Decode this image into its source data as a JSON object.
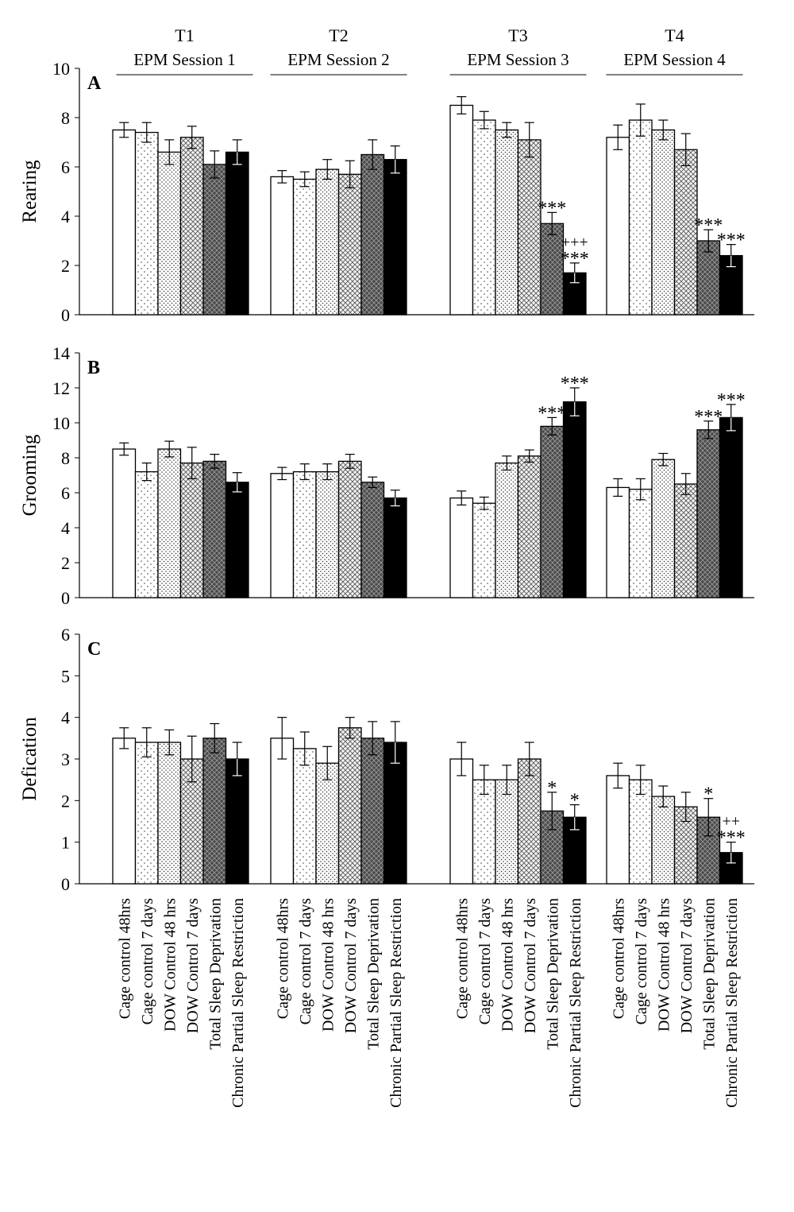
{
  "chart_data": {
    "type": "bar",
    "sessions": [
      {
        "code": "T1",
        "name": "EPM Session 1"
      },
      {
        "code": "T2",
        "name": "EPM Session 2"
      },
      {
        "code": "T3",
        "name": "EPM Session 3"
      },
      {
        "code": "T4",
        "name": "EPM Session 4"
      }
    ],
    "categories": [
      "Cage control 48hrs",
      "Cage control 7 days",
      "DOW  Control 48 hrs",
      "DOW  Control 7 days",
      "Total Sleep Deprivation",
      "Chronic Partial Sleep  Restriction"
    ],
    "series_styles": [
      {
        "fill": "#ffffff",
        "pattern": "none"
      },
      {
        "fill": "#ffffff",
        "pattern": "sparse-dots"
      },
      {
        "fill": "#ffffff",
        "pattern": "dense-dots"
      },
      {
        "fill": "#e6e6e6",
        "pattern": "crosshatch"
      },
      {
        "fill": "#5a5a5a",
        "pattern": "dark-crosshatch"
      },
      {
        "fill": "#000000",
        "pattern": "solid"
      }
    ],
    "panels": [
      {
        "letter": "A",
        "ylabel": "Rearing",
        "ylim": [
          0,
          10
        ],
        "yticks": [
          0,
          2,
          4,
          6,
          8,
          10
        ],
        "groups": [
          {
            "values": [
              7.5,
              7.4,
              6.6,
              7.2,
              6.1,
              6.6
            ],
            "errors": [
              0.3,
              0.4,
              0.5,
              0.45,
              0.55,
              0.5
            ],
            "annotations": [
              "",
              "",
              "",
              "",
              "",
              ""
            ]
          },
          {
            "values": [
              5.6,
              5.5,
              5.9,
              5.7,
              6.5,
              6.3
            ],
            "errors": [
              0.25,
              0.3,
              0.4,
              0.55,
              0.6,
              0.55
            ],
            "annotations": [
              "",
              "",
              "",
              "",
              "",
              ""
            ]
          },
          {
            "values": [
              8.5,
              7.9,
              7.5,
              7.1,
              3.7,
              1.7
            ],
            "errors": [
              0.35,
              0.35,
              0.3,
              0.7,
              0.45,
              0.4
            ],
            "annotations": [
              "",
              "",
              "",
              "",
              "***",
              "+++\n***"
            ]
          },
          {
            "values": [
              7.2,
              7.9,
              7.5,
              6.7,
              3.0,
              2.4
            ],
            "errors": [
              0.5,
              0.65,
              0.4,
              0.65,
              0.45,
              0.45
            ],
            "annotations": [
              "",
              "",
              "",
              "",
              "***",
              "***"
            ]
          }
        ]
      },
      {
        "letter": "B",
        "ylabel": "Grooming",
        "ylim": [
          0,
          14
        ],
        "yticks": [
          0,
          2,
          4,
          6,
          8,
          10,
          12,
          14
        ],
        "groups": [
          {
            "values": [
              8.5,
              7.2,
              8.5,
              7.7,
              7.8,
              6.6
            ],
            "errors": [
              0.35,
              0.5,
              0.45,
              0.9,
              0.4,
              0.55
            ],
            "annotations": [
              "",
              "",
              "",
              "",
              "",
              ""
            ]
          },
          {
            "values": [
              7.1,
              7.2,
              7.2,
              7.8,
              6.6,
              5.7
            ],
            "errors": [
              0.35,
              0.45,
              0.45,
              0.4,
              0.3,
              0.45
            ],
            "annotations": [
              "",
              "",
              "",
              "",
              "",
              ""
            ]
          },
          {
            "values": [
              5.7,
              5.4,
              7.7,
              8.1,
              9.8,
              11.2
            ],
            "errors": [
              0.4,
              0.35,
              0.4,
              0.35,
              0.5,
              0.8
            ],
            "annotations": [
              "",
              "",
              "",
              "",
              "***",
              "***"
            ]
          },
          {
            "values": [
              6.3,
              6.2,
              7.9,
              6.5,
              9.6,
              10.3
            ],
            "errors": [
              0.5,
              0.6,
              0.35,
              0.6,
              0.5,
              0.75
            ],
            "annotations": [
              "",
              "",
              "",
              "",
              "***",
              "***"
            ]
          }
        ]
      },
      {
        "letter": "C",
        "ylabel": "Defication",
        "ylim": [
          0,
          6
        ],
        "yticks": [
          0,
          1,
          2,
          3,
          4,
          5,
          6
        ],
        "groups": [
          {
            "values": [
              3.5,
              3.4,
              3.4,
              3.0,
              3.5,
              3.0
            ],
            "errors": [
              0.25,
              0.35,
              0.3,
              0.55,
              0.35,
              0.4
            ],
            "annotations": [
              "",
              "",
              "",
              "",
              "",
              ""
            ]
          },
          {
            "values": [
              3.5,
              3.25,
              2.9,
              3.75,
              3.5,
              3.4
            ],
            "errors": [
              0.5,
              0.4,
              0.4,
              0.25,
              0.4,
              0.5
            ],
            "annotations": [
              "",
              "",
              "",
              "",
              "",
              ""
            ]
          },
          {
            "values": [
              3.0,
              2.5,
              2.5,
              3.0,
              1.75,
              1.6
            ],
            "errors": [
              0.4,
              0.35,
              0.35,
              0.4,
              0.45,
              0.3
            ],
            "annotations": [
              "",
              "",
              "",
              "",
              "*",
              "*"
            ]
          },
          {
            "values": [
              2.6,
              2.5,
              2.1,
              1.85,
              1.6,
              0.75
            ],
            "errors": [
              0.3,
              0.35,
              0.25,
              0.35,
              0.45,
              0.25
            ],
            "annotations": [
              "",
              "",
              "",
              "",
              "*",
              "++\n***"
            ]
          }
        ]
      }
    ]
  }
}
